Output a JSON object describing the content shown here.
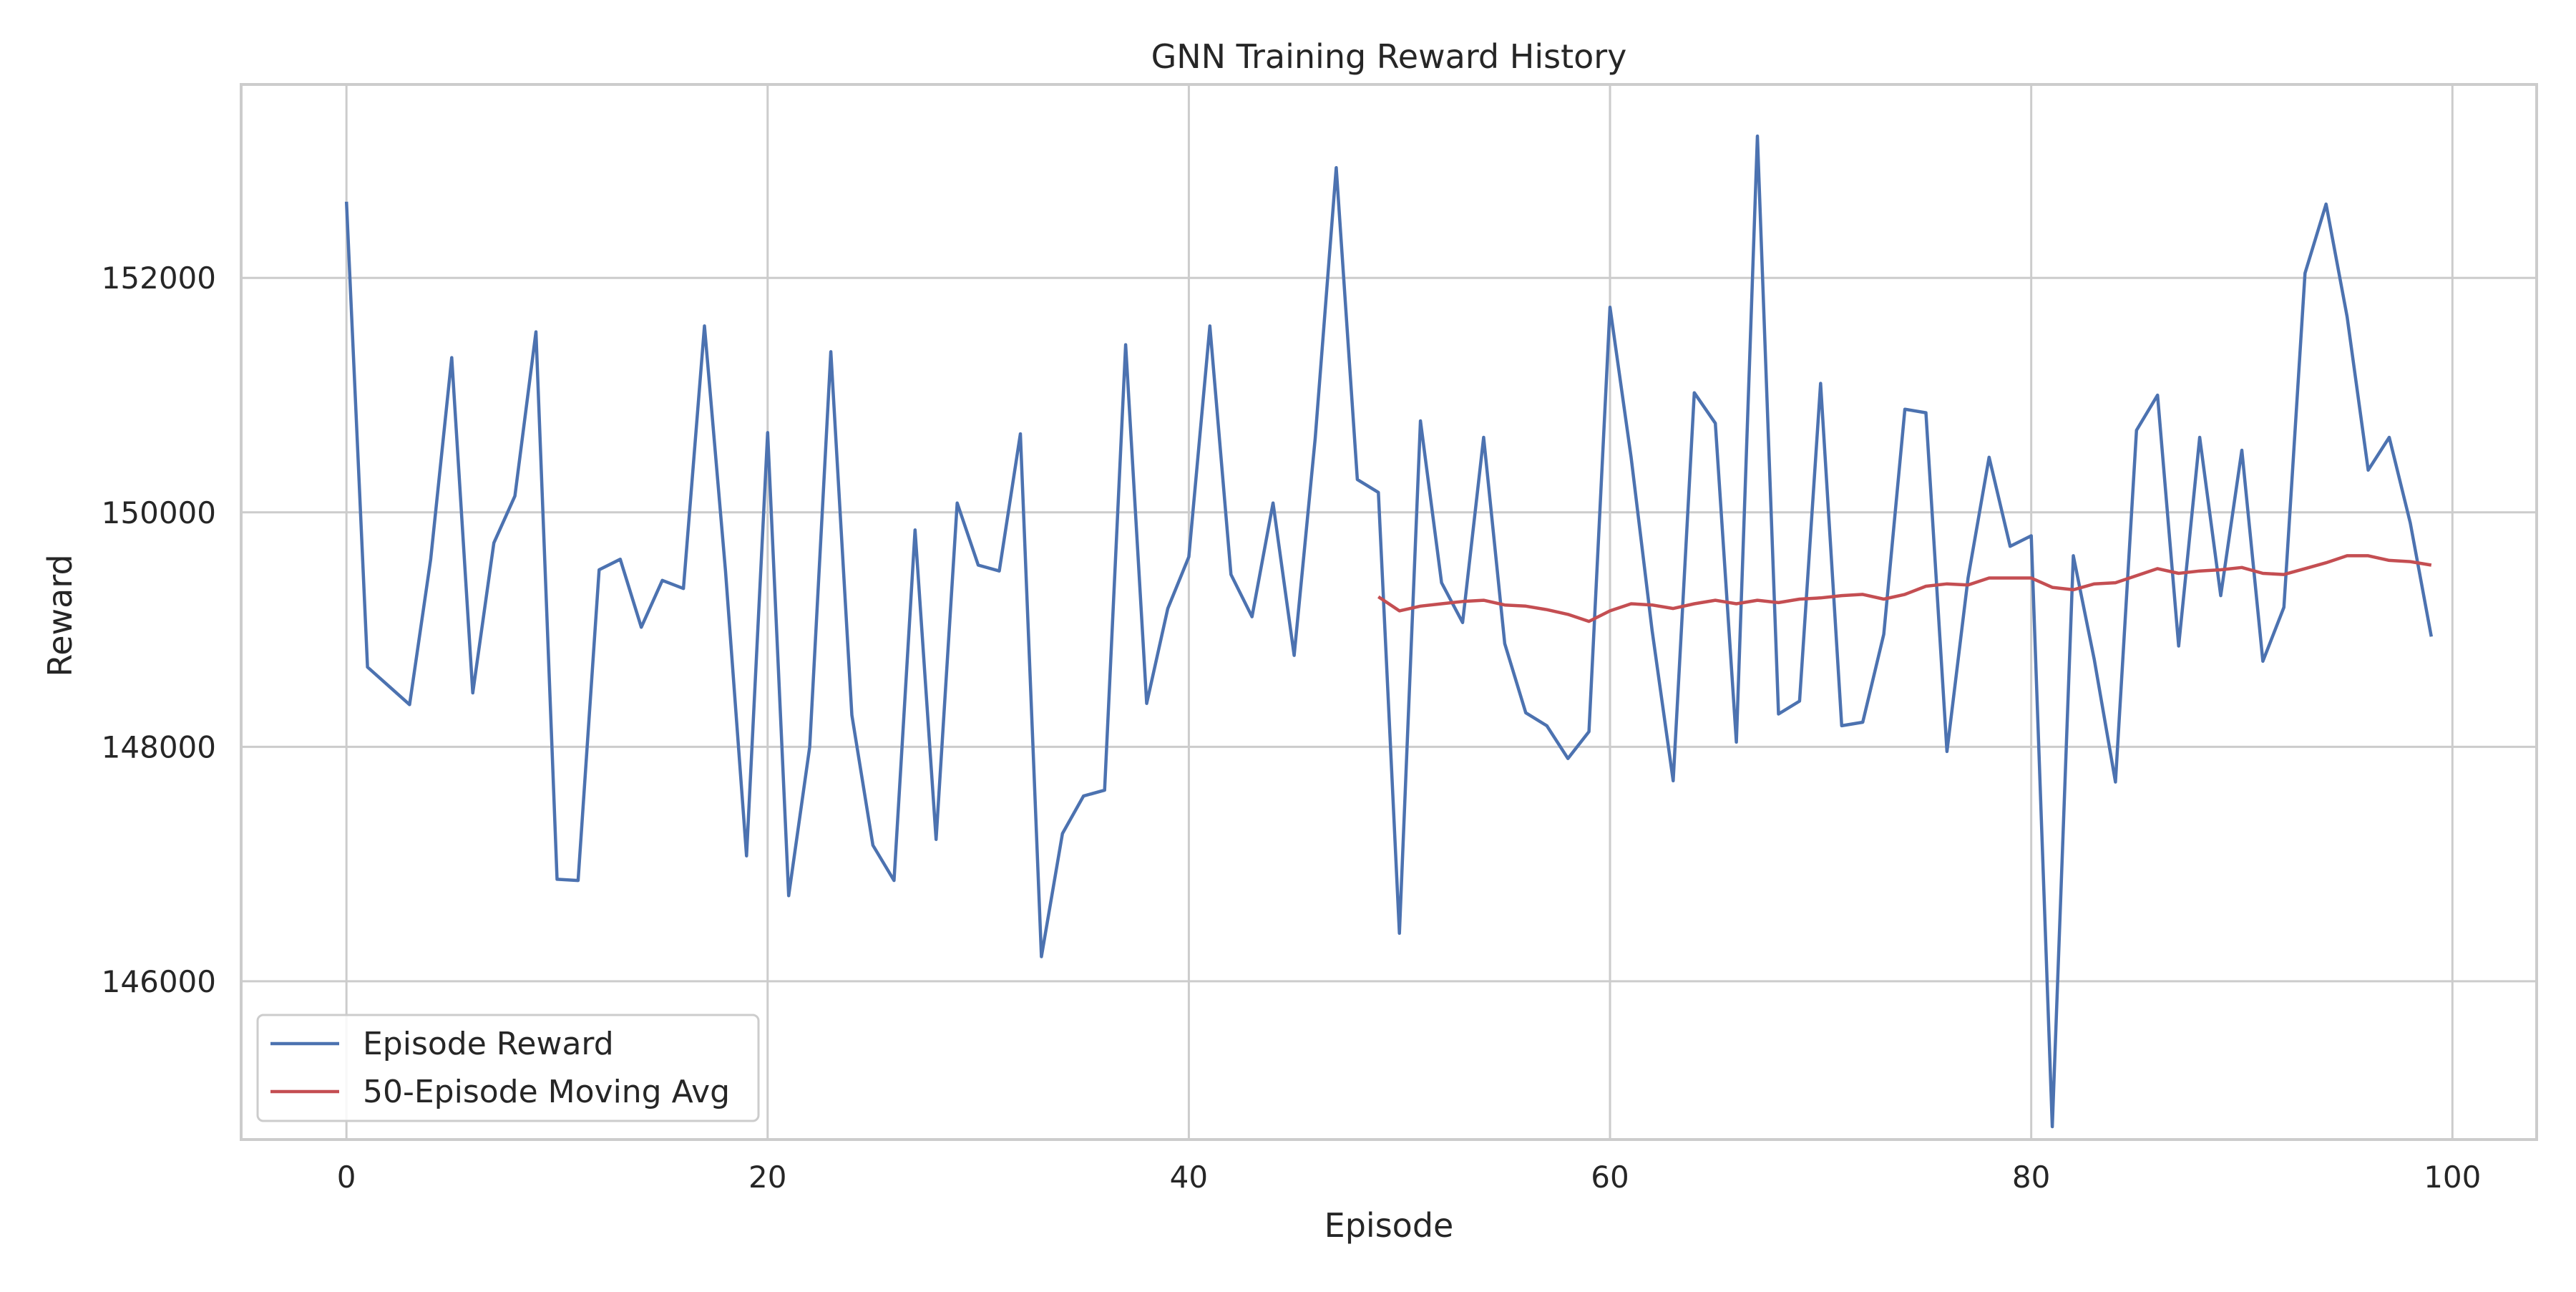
{
  "chart_data": {
    "type": "line",
    "title": "GNN Training Reward History",
    "xlabel": "Episode",
    "ylabel": "Reward",
    "xlim": [
      -5,
      104
    ],
    "ylim": [
      144650,
      153650
    ],
    "xticks": [
      0,
      20,
      40,
      60,
      80,
      100
    ],
    "yticks": [
      146000,
      148000,
      150000,
      152000
    ],
    "xtick_labels": [
      "0",
      "20",
      "40",
      "60",
      "80",
      "100"
    ],
    "ytick_labels": [
      "146000",
      "148000",
      "150000",
      "152000"
    ],
    "grid": true,
    "legend_position": "lower-left",
    "series": [
      {
        "name": "Episode Reward",
        "color": "#4c72b0",
        "x": [
          0,
          1,
          2,
          3,
          4,
          5,
          6,
          7,
          8,
          9,
          10,
          11,
          12,
          13,
          14,
          15,
          16,
          17,
          18,
          19,
          20,
          21,
          22,
          23,
          24,
          25,
          26,
          27,
          28,
          29,
          30,
          31,
          32,
          33,
          34,
          35,
          36,
          37,
          38,
          39,
          40,
          41,
          42,
          43,
          44,
          45,
          46,
          47,
          48,
          49,
          50,
          51,
          52,
          53,
          54,
          55,
          56,
          57,
          58,
          59,
          60,
          61,
          62,
          63,
          64,
          65,
          66,
          67,
          68,
          69,
          70,
          71,
          72,
          73,
          74,
          75,
          76,
          77,
          78,
          79,
          80,
          81,
          82,
          83,
          84,
          85,
          86,
          87,
          88,
          89,
          90,
          91,
          92,
          93,
          94,
          95,
          96,
          97,
          98,
          99
        ],
        "values": [
          152650,
          148680,
          148520,
          148360,
          149600,
          151320,
          148460,
          149740,
          150140,
          151540,
          146870,
          146860,
          149510,
          149600,
          149020,
          149420,
          149350,
          151590,
          149500,
          147070,
          150680,
          146730,
          148000,
          151370,
          148270,
          147160,
          146860,
          149850,
          147210,
          150080,
          149550,
          149500,
          150670,
          146210,
          147260,
          147580,
          147630,
          151430,
          148370,
          149180,
          149620,
          151590,
          149470,
          149110,
          150080,
          148780,
          150630,
          152940,
          150280,
          150170,
          146410,
          150780,
          149400,
          149060,
          150640,
          148880,
          148290,
          148180,
          147900,
          148130,
          151750,
          150470,
          148990,
          147710,
          151020,
          150760,
          148040,
          153210,
          148280,
          148390,
          151100,
          148180,
          148210,
          148960,
          150880,
          150850,
          147960,
          149440,
          150470,
          149710,
          149800,
          144760,
          149630,
          148740,
          147700,
          150700,
          151000,
          148860,
          150640,
          149290,
          150530,
          148730,
          149190,
          152040,
          152630,
          151670,
          150360,
          150640,
          149910,
          148940
        ]
      },
      {
        "name": "50-Episode Moving Avg",
        "color": "#c44e52",
        "x": [
          49,
          50,
          51,
          52,
          53,
          54,
          55,
          56,
          57,
          58,
          59,
          60,
          61,
          62,
          63,
          64,
          65,
          66,
          67,
          68,
          69,
          70,
          71,
          72,
          73,
          74,
          75,
          76,
          77,
          78,
          79,
          80,
          81,
          82,
          83,
          84,
          85,
          86,
          87,
          88,
          89,
          90,
          91,
          92,
          93,
          94,
          95,
          96,
          97,
          98,
          99
        ],
        "values": [
          149280,
          149160,
          149200,
          149220,
          149240,
          149250,
          149210,
          149200,
          149170,
          149130,
          149070,
          149160,
          149220,
          149210,
          149180,
          149220,
          149250,
          149220,
          149250,
          149230,
          149260,
          149270,
          149290,
          149300,
          149260,
          149300,
          149370,
          149390,
          149380,
          149440,
          149440,
          149440,
          149360,
          149340,
          149390,
          149400,
          149460,
          149520,
          149480,
          149500,
          149510,
          149530,
          149480,
          149470,
          149520,
          149570,
          149630,
          149630,
          149590,
          149580,
          149550
        ]
      }
    ]
  }
}
